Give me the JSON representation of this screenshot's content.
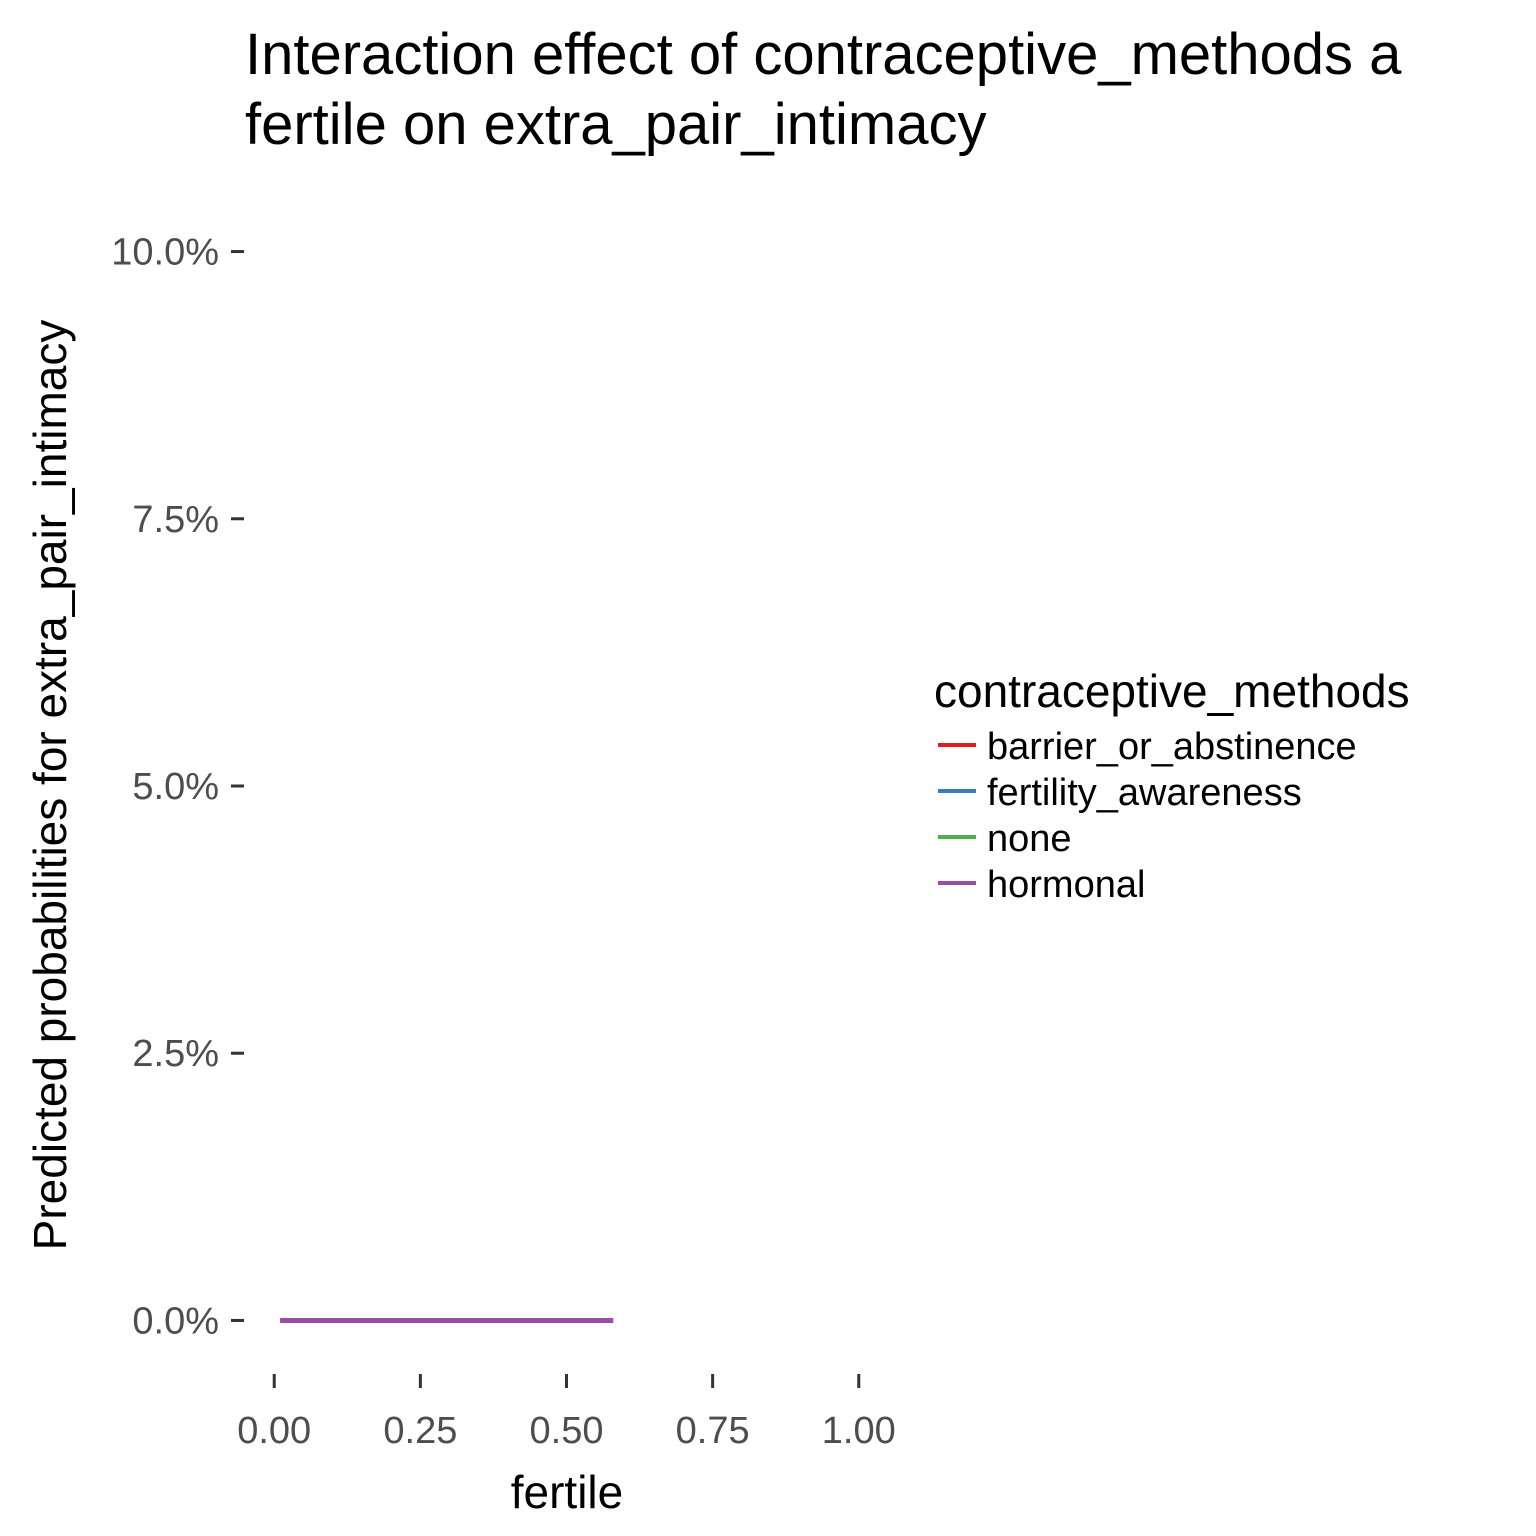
{
  "chart_data": {
    "type": "line",
    "title_lines": [
      "Interaction effect of contraceptive_methods a",
      "fertile on extra_pair_intimacy"
    ],
    "xlabel": "fertile",
    "ylabel": "Predicted probabilities for extra_pair_intimacy",
    "xlim": [
      -0.05,
      1.05
    ],
    "ylim": [
      -0.0037,
      0.1037
    ],
    "x_ticks": [
      0,
      0.25,
      0.5,
      0.75,
      1
    ],
    "x_tick_labels": [
      "0.00",
      "0.25",
      "0.50",
      "0.75",
      "1.00"
    ],
    "y_ticks": [
      0,
      0.025,
      0.05,
      0.075,
      0.1
    ],
    "y_tick_labels": [
      "0.0%",
      "2.5%",
      "5.0%",
      "7.5%",
      "10.0%"
    ],
    "grid": false,
    "legend": {
      "title": "contraceptive_methods",
      "position": "right"
    },
    "series": [
      {
        "name": "barrier_or_abstinence",
        "color": "#e41a1c",
        "x": [],
        "y": []
      },
      {
        "name": "fertility_awareness",
        "color": "#377eb8",
        "x": [],
        "y": []
      },
      {
        "name": "none",
        "color": "#4daf4a",
        "x": [],
        "y": []
      },
      {
        "name": "hormonal",
        "color": "#984ea3",
        "x": [
          0.01,
          0.58
        ],
        "y": [
          0.0,
          0.0
        ]
      }
    ]
  }
}
